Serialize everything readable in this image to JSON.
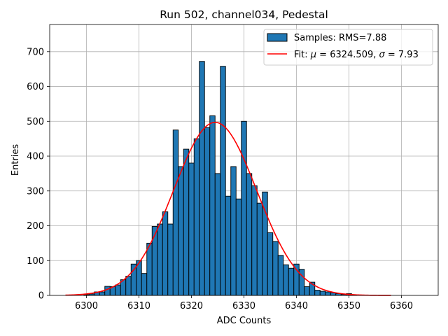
{
  "colors": {
    "bar_fill": "#1f77b4",
    "bar_edge": "#000000",
    "fit_line": "#ff0000",
    "grid": "#b0b0b0"
  },
  "chart_data": {
    "type": "bar",
    "title": "Run 502, channel034, Pedestal",
    "xlabel": "ADC Counts",
    "ylabel": "Entries",
    "xlim": [
      6293,
      6367
    ],
    "ylim": [
      0,
      778
    ],
    "grid": true,
    "legend_position": "top-right",
    "xticks": [
      6300,
      6310,
      6320,
      6330,
      6340,
      6350,
      6360
    ],
    "yticks": [
      0,
      100,
      200,
      300,
      400,
      500,
      600,
      700
    ],
    "bin_width": 1,
    "series": [
      {
        "name": "Samples: RMS=7.88",
        "kind": "histogram",
        "bins": [
          {
            "x": 6300,
            "y": 2
          },
          {
            "x": 6301,
            "y": 4
          },
          {
            "x": 6302,
            "y": 10
          },
          {
            "x": 6303,
            "y": 10
          },
          {
            "x": 6304,
            "y": 26
          },
          {
            "x": 6305,
            "y": 25
          },
          {
            "x": 6306,
            "y": 30
          },
          {
            "x": 6307,
            "y": 45
          },
          {
            "x": 6308,
            "y": 55
          },
          {
            "x": 6309,
            "y": 90
          },
          {
            "x": 6310,
            "y": 100
          },
          {
            "x": 6311,
            "y": 63
          },
          {
            "x": 6312,
            "y": 150
          },
          {
            "x": 6313,
            "y": 198
          },
          {
            "x": 6314,
            "y": 205
          },
          {
            "x": 6315,
            "y": 240
          },
          {
            "x": 6316,
            "y": 205
          },
          {
            "x": 6317,
            "y": 475
          },
          {
            "x": 6318,
            "y": 370
          },
          {
            "x": 6319,
            "y": 420
          },
          {
            "x": 6320,
            "y": 380
          },
          {
            "x": 6321,
            "y": 450
          },
          {
            "x": 6322,
            "y": 672
          },
          {
            "x": 6323,
            "y": 482
          },
          {
            "x": 6324,
            "y": 516
          },
          {
            "x": 6325,
            "y": 350
          },
          {
            "x": 6326,
            "y": 658
          },
          {
            "x": 6327,
            "y": 285
          },
          {
            "x": 6328,
            "y": 370
          },
          {
            "x": 6329,
            "y": 277
          },
          {
            "x": 6330,
            "y": 500
          },
          {
            "x": 6331,
            "y": 350
          },
          {
            "x": 6332,
            "y": 315
          },
          {
            "x": 6333,
            "y": 265
          },
          {
            "x": 6334,
            "y": 297
          },
          {
            "x": 6335,
            "y": 180
          },
          {
            "x": 6336,
            "y": 155
          },
          {
            "x": 6337,
            "y": 115
          },
          {
            "x": 6338,
            "y": 88
          },
          {
            "x": 6339,
            "y": 78
          },
          {
            "x": 6340,
            "y": 90
          },
          {
            "x": 6341,
            "y": 75
          },
          {
            "x": 6342,
            "y": 25
          },
          {
            "x": 6343,
            "y": 38
          },
          {
            "x": 6344,
            "y": 15
          },
          {
            "x": 6345,
            "y": 12
          },
          {
            "x": 6346,
            "y": 10
          },
          {
            "x": 6347,
            "y": 8
          },
          {
            "x": 6348,
            "y": 5
          },
          {
            "x": 6349,
            "y": 3
          },
          {
            "x": 6350,
            "y": 5
          },
          {
            "x": 6351,
            "y": 2
          }
        ]
      },
      {
        "name": "Fit: μ = 6324.509, σ = 7.93",
        "kind": "gaussian",
        "mu": 6324.509,
        "sigma": 7.93,
        "amplitude": 497,
        "x_range": [
          6296,
          6358
        ]
      }
    ],
    "legend": [
      {
        "label": "Samples: RMS=7.88",
        "marker": "patch"
      },
      {
        "label_prefix": "Fit: ",
        "label_mu": "μ",
        "label_mid": " = 6324.509, ",
        "label_sigma": "σ",
        "label_suffix": " = 7.93",
        "marker": "line"
      }
    ]
  }
}
